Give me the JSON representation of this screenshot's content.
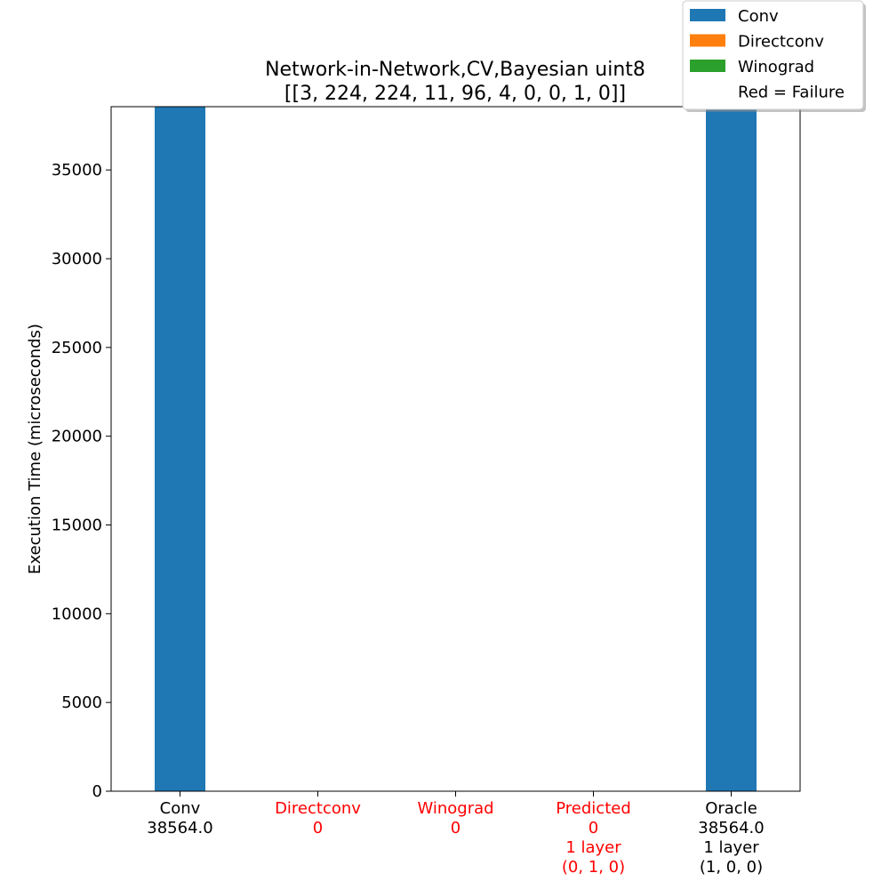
{
  "chart_data": {
    "type": "bar",
    "title_lines": [
      "Network-in-Network,CV,Bayesian uint8",
      "[[3, 224, 224, 11, 96, 4, 0, 0, 1, 0]]"
    ],
    "ylabel": "Execution Time (microseconds)",
    "ylim": [
      0,
      38564
    ],
    "yticks": [
      0,
      5000,
      10000,
      15000,
      20000,
      25000,
      30000,
      35000
    ],
    "grid": false,
    "categories": [
      {
        "lines": [
          "Conv",
          "38564.0"
        ],
        "value": 38564.0,
        "color": "#1f77b4",
        "label_color": "#000000"
      },
      {
        "lines": [
          "Directconv",
          "0"
        ],
        "value": 0,
        "color": "#ff7f0e",
        "label_color": "#ff0000"
      },
      {
        "lines": [
          "Winograd",
          "0"
        ],
        "value": 0,
        "color": "#2ca02c",
        "label_color": "#ff0000"
      },
      {
        "lines": [
          "Predicted",
          "0",
          "1 layer",
          "(0, 1, 0)"
        ],
        "value": 0,
        "color": "#1f77b4",
        "label_color": "#ff0000"
      },
      {
        "lines": [
          "Oracle",
          "38564.0",
          "1 layer",
          "(1, 0, 0)"
        ],
        "value": 38564.0,
        "color": "#1f77b4",
        "label_color": "#000000"
      }
    ],
    "legend": {
      "position": "top-right",
      "entries": [
        {
          "label": "Conv",
          "color": "#1f77b4"
        },
        {
          "label": "Directconv",
          "color": "#ff7f0e"
        },
        {
          "label": "Winograd",
          "color": "#2ca02c"
        },
        {
          "label": "Red = Failure",
          "color": null
        }
      ]
    }
  }
}
